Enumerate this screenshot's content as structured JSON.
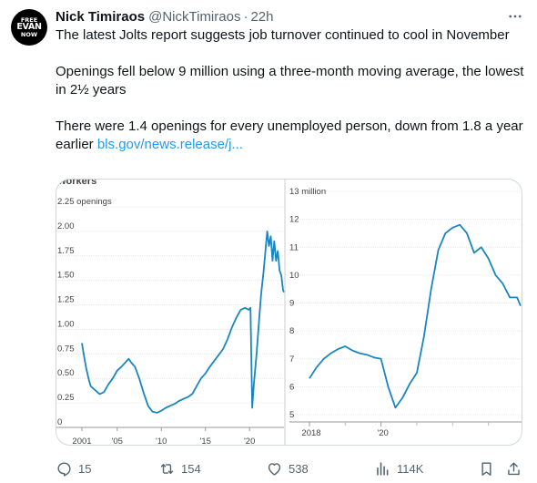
{
  "avatar": {
    "line1": "FREE",
    "line2": "EVAN",
    "line3": "NOW"
  },
  "tweet": {
    "author_name": "Nick Timiraos",
    "author_handle": "@NickTimiraos",
    "separator": "·",
    "time": "22h",
    "paragraph1": "The latest Jolts report suggests job turnover continued to cool in November",
    "paragraph2": "Openings fell below 9 million using a three-month moving average, the lowest in 2½ years",
    "paragraph3_text": "There were 1.4 openings for every unemployed person, down from 1.8 a year earlier",
    "paragraph3_link": "bls.gov/news.release/j..."
  },
  "chart_data": [
    {
      "type": "line",
      "title": "workers",
      "ylabel": "openings",
      "yticks": [
        "2.25 openings",
        "2.00",
        "1.75",
        "1.50",
        "1.25",
        "1.00",
        "0.75",
        "0.50",
        "0.25",
        "0"
      ],
      "xticks": [
        "2001",
        "'05",
        "'10",
        "'15",
        "'20"
      ],
      "ylim": [
        0,
        2.25
      ],
      "xlim": [
        2001,
        2023.9
      ],
      "series": [
        {
          "color": "#1a86c0",
          "x": [
            2001.0,
            2001.2,
            2001.5,
            2001.8,
            2002.0,
            2002.5,
            2003.0,
            2003.5,
            2004.0,
            2004.5,
            2005.0,
            2005.5,
            2006.0,
            2006.3,
            2006.6,
            2007.0,
            2007.5,
            2008.0,
            2008.5,
            2009.0,
            2009.5,
            2010.0,
            2010.5,
            2011.0,
            2011.5,
            2012.0,
            2012.5,
            2013.0,
            2013.5,
            2014.0,
            2014.5,
            2015.0,
            2015.5,
            2016.0,
            2016.5,
            2017.0,
            2017.5,
            2018.0,
            2018.5,
            2019.0,
            2019.5,
            2019.9,
            2020.1,
            2020.3,
            2020.5,
            2020.8,
            2021.0,
            2021.3,
            2021.6,
            2021.9,
            2022.0,
            2022.2,
            2022.4,
            2022.6,
            2022.8,
            2023.0,
            2023.2,
            2023.4,
            2023.6,
            2023.8,
            2023.9
          ],
          "y": [
            0.86,
            0.75,
            0.6,
            0.48,
            0.42,
            0.38,
            0.34,
            0.36,
            0.44,
            0.5,
            0.58,
            0.62,
            0.67,
            0.7,
            0.66,
            0.62,
            0.5,
            0.35,
            0.22,
            0.16,
            0.15,
            0.17,
            0.2,
            0.22,
            0.24,
            0.27,
            0.29,
            0.31,
            0.34,
            0.42,
            0.5,
            0.55,
            0.62,
            0.68,
            0.74,
            0.8,
            0.9,
            1.02,
            1.12,
            1.2,
            1.22,
            1.2,
            1.22,
            0.2,
            0.45,
            0.75,
            1.0,
            1.35,
            1.6,
            1.9,
            2.0,
            1.85,
            1.95,
            1.7,
            1.9,
            1.7,
            1.8,
            1.6,
            1.55,
            1.4,
            1.38
          ]
        }
      ]
    },
    {
      "type": "line",
      "title": "",
      "ylabel": "",
      "yticks": [
        "13 million",
        "12",
        "11",
        "10",
        "9",
        "8",
        "7",
        "6",
        "5"
      ],
      "xticks": [
        "2018",
        "'20"
      ],
      "ylim": [
        5,
        13
      ],
      "xlim": [
        2018,
        2023.9
      ],
      "series": [
        {
          "color": "#1a86c0",
          "x": [
            2018.0,
            2018.2,
            2018.4,
            2018.6,
            2018.8,
            2019.0,
            2019.2,
            2019.4,
            2019.6,
            2019.8,
            2020.0,
            2020.2,
            2020.4,
            2020.6,
            2020.8,
            2021.0,
            2021.2,
            2021.4,
            2021.6,
            2021.8,
            2022.0,
            2022.2,
            2022.4,
            2022.6,
            2022.8,
            2023.0,
            2023.2,
            2023.4,
            2023.6,
            2023.8,
            2023.9
          ],
          "y": [
            6.3,
            6.7,
            7.0,
            7.2,
            7.35,
            7.45,
            7.3,
            7.2,
            7.15,
            7.05,
            7.0,
            6.0,
            5.25,
            5.6,
            6.1,
            6.5,
            7.8,
            9.5,
            10.9,
            11.5,
            11.7,
            11.8,
            11.5,
            10.8,
            11.0,
            10.6,
            10.0,
            9.7,
            9.2,
            9.2,
            8.9
          ]
        }
      ]
    }
  ],
  "actions": {
    "replies": "15",
    "reposts": "154",
    "likes": "538",
    "views": "114K"
  },
  "icons": {
    "more": "more-icon",
    "reply": "reply-icon",
    "repost": "repost-icon",
    "like": "heart-icon",
    "views": "views-icon",
    "bookmark": "bookmark-icon",
    "share": "share-icon"
  }
}
